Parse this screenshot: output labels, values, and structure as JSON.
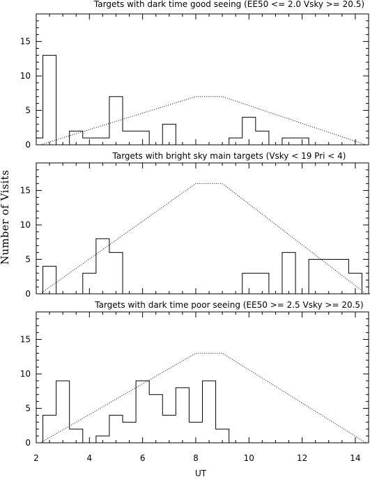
{
  "figure": {
    "xlabel": "UT",
    "ylabel": "Number of Visits",
    "x_tick_labels": [
      "2",
      "4",
      "6",
      "8",
      "10",
      "12",
      "14"
    ],
    "y_tick_labels": [
      "0",
      "5",
      "10",
      "15"
    ]
  },
  "chart_data": [
    {
      "type": "histogram",
      "title": "Targets with dark time good seeing (EE50 <= 2.0 Vsky >= 20.5)",
      "xlim": [
        2,
        14.5
      ],
      "ylim": [
        0,
        19
      ],
      "bin_width": 0.5,
      "bins": [
        {
          "start": 2.0,
          "value": 1
        },
        {
          "start": 2.25,
          "value": 13
        },
        {
          "start": 2.75,
          "value": 0
        },
        {
          "start": 3.25,
          "value": 2
        },
        {
          "start": 3.75,
          "value": 1
        },
        {
          "start": 4.25,
          "value": 1
        },
        {
          "start": 4.75,
          "value": 7
        },
        {
          "start": 5.25,
          "value": 2
        },
        {
          "start": 5.75,
          "value": 2
        },
        {
          "start": 6.25,
          "value": 0
        },
        {
          "start": 6.75,
          "value": 3
        },
        {
          "start": 7.25,
          "value": 0
        },
        {
          "start": 7.75,
          "value": 0
        },
        {
          "start": 8.25,
          "value": 0
        },
        {
          "start": 8.75,
          "value": 0
        },
        {
          "start": 9.25,
          "value": 1
        },
        {
          "start": 9.75,
          "value": 4
        },
        {
          "start": 10.25,
          "value": 2
        },
        {
          "start": 10.75,
          "value": 0
        },
        {
          "start": 11.25,
          "value": 1
        },
        {
          "start": 11.75,
          "value": 1
        },
        {
          "start": 12.25,
          "value": 0
        }
      ],
      "curve": {
        "style": "dotted",
        "x": [
          2.15,
          8.0,
          9.0,
          14.4
        ],
        "y": [
          0,
          7,
          7,
          0
        ]
      }
    },
    {
      "type": "histogram",
      "title": "Targets with bright sky main targets (Vsky < 19 Pri < 4)",
      "xlim": [
        2,
        14.5
      ],
      "ylim": [
        0,
        19
      ],
      "bin_width": 0.5,
      "bins": [
        {
          "start": 2.25,
          "value": 4
        },
        {
          "start": 2.75,
          "value": 0
        },
        {
          "start": 3.75,
          "value": 3
        },
        {
          "start": 4.25,
          "value": 8
        },
        {
          "start": 4.75,
          "value": 6
        },
        {
          "start": 5.25,
          "value": 0
        },
        {
          "start": 9.75,
          "value": 3
        },
        {
          "start": 10.25,
          "value": 3
        },
        {
          "start": 10.75,
          "value": 0
        },
        {
          "start": 11.25,
          "value": 6
        },
        {
          "start": 11.75,
          "value": 0
        },
        {
          "start": 12.25,
          "value": 5
        },
        {
          "start": 12.75,
          "value": 5
        },
        {
          "start": 13.25,
          "value": 5
        },
        {
          "start": 13.75,
          "value": 3
        },
        {
          "start": 14.25,
          "value": 0
        }
      ],
      "curve": {
        "style": "dotted",
        "x": [
          2.15,
          8.0,
          9.0,
          14.4
        ],
        "y": [
          0,
          16,
          16,
          0
        ]
      }
    },
    {
      "type": "histogram",
      "title": "Targets with dark time poor seeing (EE50 >= 2.5 Vsky >= 20.5)",
      "xlim": [
        2,
        14.5
      ],
      "ylim": [
        0,
        19
      ],
      "bin_width": 0.5,
      "bins": [
        {
          "start": 2.25,
          "value": 4
        },
        {
          "start": 2.75,
          "value": 9
        },
        {
          "start": 3.25,
          "value": 2
        },
        {
          "start": 3.75,
          "value": 0
        },
        {
          "start": 4.25,
          "value": 1
        },
        {
          "start": 4.75,
          "value": 4
        },
        {
          "start": 5.25,
          "value": 3
        },
        {
          "start": 5.75,
          "value": 9
        },
        {
          "start": 6.25,
          "value": 7
        },
        {
          "start": 6.75,
          "value": 4
        },
        {
          "start": 7.25,
          "value": 8
        },
        {
          "start": 7.75,
          "value": 3
        },
        {
          "start": 8.25,
          "value": 9
        },
        {
          "start": 8.75,
          "value": 2
        },
        {
          "start": 9.25,
          "value": 0
        }
      ],
      "curve": {
        "style": "dotted",
        "x": [
          2.15,
          8.0,
          9.0,
          14.4
        ],
        "y": [
          0,
          13,
          13,
          0
        ]
      }
    }
  ]
}
